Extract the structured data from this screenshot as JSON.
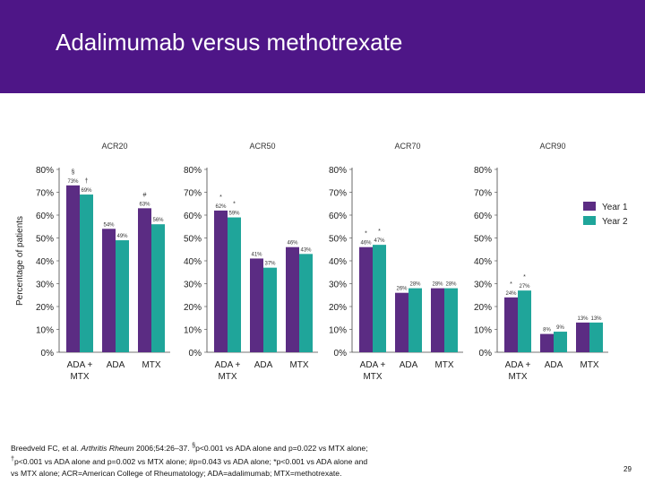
{
  "slide": {
    "title": "Adalimumab versus methotrexate",
    "page_number": "29",
    "footnote": {
      "citation_authors": "Breedveld FC, et al. ",
      "citation_journal": "Arthritis Rheum",
      "citation_rest": " 2006;54:26–37. ",
      "note_1_marker": "§",
      "note_1_text": "p<0.001 vs ADA alone and p=0.022 vs MTX alone;",
      "note_2_marker": "†",
      "note_2_text": "p<0.001 vs ADA alone and p=0.002 vs MTX alone; #p=0.043 vs ADA alone; *p<0.001 vs ADA alone and",
      "note_3_text": "vs MTX alone; ACR=American College of Rheumatology; ADA=adalimumab; MTX=methotrexate."
    }
  },
  "colors": {
    "header": "#4e1687",
    "year1": "#5b2c83",
    "year2": "#1fa59a"
  },
  "chart_data": {
    "type": "bar",
    "ylabel": "Percentage of patients",
    "ylim": [
      0,
      80
    ],
    "yticks": [
      "0%",
      "10%",
      "20%",
      "30%",
      "40%",
      "50%",
      "60%",
      "70%",
      "80%"
    ],
    "legend": {
      "placement": "right",
      "entries": [
        "Year 1",
        "Year 2"
      ]
    },
    "panels": [
      {
        "title": "ACR20",
        "categories": [
          "ADA + MTX",
          "ADA",
          "MTX"
        ],
        "series": [
          {
            "name": "Year 1",
            "values": [
              73,
              54,
              63
            ]
          },
          {
            "name": "Year 2",
            "values": [
              69,
              49,
              56
            ]
          }
        ],
        "data_labels": [
          [
            "73%",
            "69%"
          ],
          [
            "54%",
            "49%"
          ],
          [
            "63%",
            "56%"
          ]
        ],
        "markers": [
          [
            "§",
            "†"
          ],
          [
            "",
            ""
          ],
          [
            "#",
            ""
          ]
        ]
      },
      {
        "title": "ACR50",
        "categories": [
          "ADA + MTX",
          "ADA",
          "MTX"
        ],
        "series": [
          {
            "name": "Year 1",
            "values": [
              62,
              41,
              46
            ]
          },
          {
            "name": "Year 2",
            "values": [
              59,
              37,
              43
            ]
          }
        ],
        "data_labels": [
          [
            "62%",
            "59%"
          ],
          [
            "41%",
            "37%"
          ],
          [
            "46%",
            "43%"
          ]
        ],
        "markers": [
          [
            "*",
            "*"
          ],
          [
            "",
            ""
          ],
          [
            "",
            ""
          ]
        ]
      },
      {
        "title": "ACR70",
        "categories": [
          "ADA + MTX",
          "ADA",
          "MTX"
        ],
        "series": [
          {
            "name": "Year 1",
            "values": [
              46,
              26,
              28
            ]
          },
          {
            "name": "Year 2",
            "values": [
              47,
              28,
              28
            ]
          }
        ],
        "data_labels": [
          [
            "46%",
            "47%"
          ],
          [
            "26%",
            "28%"
          ],
          [
            "28%",
            "28%"
          ]
        ],
        "markers": [
          [
            "*",
            "*"
          ],
          [
            "",
            ""
          ],
          [
            "",
            ""
          ]
        ]
      },
      {
        "title": "ACR90",
        "categories": [
          "ADA + MTX",
          "ADA",
          "MTX"
        ],
        "series": [
          {
            "name": "Year 1",
            "values": [
              24,
              8,
              13
            ]
          },
          {
            "name": "Year 2",
            "values": [
              27,
              9,
              13
            ]
          }
        ],
        "data_labels": [
          [
            "24%",
            "27%"
          ],
          [
            "8%",
            "9%"
          ],
          [
            "13%",
            "13%"
          ]
        ],
        "markers": [
          [
            "*",
            "*"
          ],
          [
            "",
            ""
          ],
          [
            "",
            ""
          ]
        ]
      }
    ]
  }
}
